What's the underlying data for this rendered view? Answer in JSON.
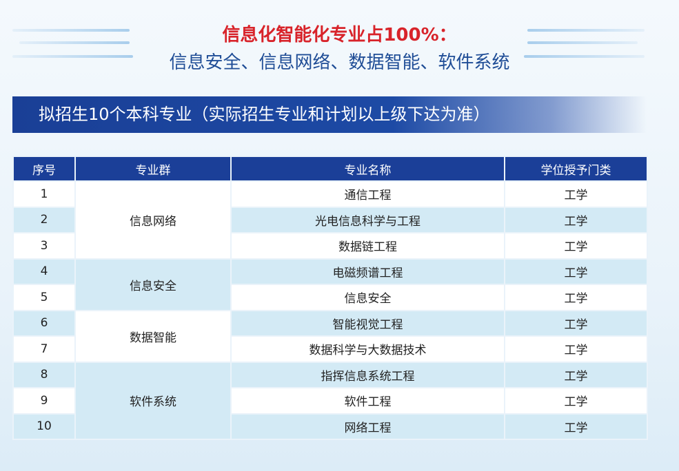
{
  "header": {
    "title": "信息化智能化专业占100%：",
    "subtitle": "信息安全、信息网络、数据智能、软件系统"
  },
  "banner": "拟招生10个本科专业（实际招生专业和计划以上级下达为准）",
  "table": {
    "columns": [
      "序号",
      "专业群",
      "专业名称",
      "学位授予门类"
    ],
    "groups": [
      {
        "name": "信息网络",
        "rows": [
          [
            "1",
            "通信工程",
            "工学"
          ],
          [
            "2",
            "光电信息科学与工程",
            "工学"
          ],
          [
            "3",
            "数据链工程",
            "工学"
          ]
        ]
      },
      {
        "name": "信息安全",
        "rows": [
          [
            "4",
            "电磁频谱工程",
            "工学"
          ],
          [
            "5",
            "信息安全",
            "工学"
          ]
        ]
      },
      {
        "name": "数据智能",
        "rows": [
          [
            "6",
            "智能视觉工程",
            "工学"
          ],
          [
            "7",
            "数据科学与大数据技术",
            "工学"
          ]
        ]
      },
      {
        "name": "软件系统",
        "rows": [
          [
            "8",
            "指挥信息系统工程",
            "工学"
          ],
          [
            "9",
            "软件工程",
            "工学"
          ],
          [
            "10",
            "网络工程",
            "工学"
          ]
        ]
      }
    ]
  }
}
